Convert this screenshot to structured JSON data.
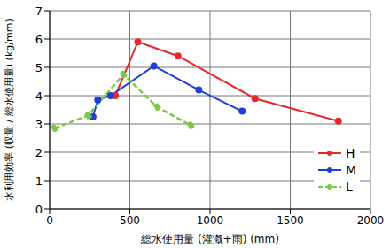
{
  "chart_data": {
    "type": "line",
    "x_label": "総水使用量 (灌漑+雨) (mm)",
    "y_label": "水利用効率 (収量 / 総水使用量) (kg/mm)",
    "xlim": [
      0,
      2000
    ],
    "xticks": [
      0,
      500,
      1000,
      1500,
      2000
    ],
    "ylim": [
      0,
      7
    ],
    "yticks": [
      0,
      1,
      2,
      3,
      4,
      5,
      6,
      7
    ],
    "grid": true,
    "legend": "lower right",
    "series": [
      {
        "name": "H",
        "color": "#e8282b",
        "marker": "circle",
        "line_style": "solid",
        "x": [
          410,
          550,
          800,
          1280,
          1800
        ],
        "values": [
          4.0,
          5.9,
          5.4,
          3.9,
          3.1
        ]
      },
      {
        "name": "M",
        "color": "#1f3fd6",
        "marker": "circle",
        "line_style": "solid",
        "x": [
          270,
          300,
          380,
          650,
          930,
          1200
        ],
        "values": [
          3.25,
          3.85,
          4.0,
          5.05,
          4.2,
          3.45
        ]
      },
      {
        "name": "L",
        "color": "#7ac943",
        "marker": "circle",
        "line_style": "dashed",
        "x": [
          30,
          240,
          460,
          670,
          880
        ],
        "values": [
          2.85,
          3.3,
          4.75,
          3.6,
          2.95
        ]
      }
    ]
  }
}
